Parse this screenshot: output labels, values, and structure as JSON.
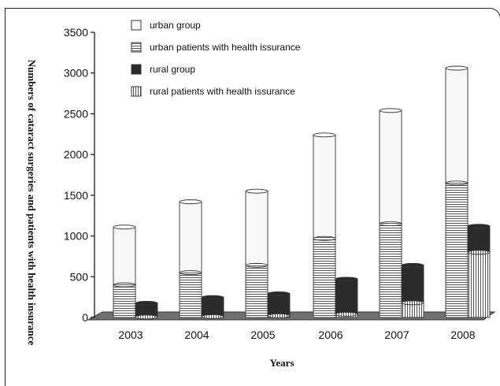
{
  "chart_data": {
    "type": "bar",
    "title": "",
    "xlabel": "Years",
    "ylabel": "Numbers of cataract surgeries and patients with health insurance",
    "categories": [
      "2003",
      "2004",
      "2005",
      "2006",
      "2007",
      "2008"
    ],
    "yticks": [
      "0",
      "500",
      "1000",
      "1500",
      "2000",
      "2500",
      "3000",
      "3500"
    ],
    "ylim": [
      0,
      3500
    ],
    "grid": false,
    "legend_position": "top",
    "stacks": [
      {
        "stack": "urban",
        "series": [
          {
            "name": "urban patients with health issurance",
            "pattern": "horizontal-lines",
            "values": [
              400,
              550,
              640,
              970,
              1150,
              1650
            ]
          },
          {
            "name": "urban group",
            "pattern": "white",
            "values": [
              1110,
              1420,
              1550,
              2240,
              2540,
              3060
            ]
          }
        ]
      },
      {
        "stack": "rural",
        "series": [
          {
            "name": "rural patients with health issurance",
            "pattern": "vertical-lines",
            "values": [
              5,
              10,
              20,
              40,
              180,
              800
            ]
          },
          {
            "name": "rural group",
            "pattern": "dark",
            "values": [
              175,
              245,
              290,
              470,
              640,
              1120
            ]
          }
        ]
      }
    ],
    "legend": [
      {
        "label": "urban group",
        "pattern": "white"
      },
      {
        "label": "urban patients with health issurance",
        "pattern": "horizontal-lines"
      },
      {
        "label": "rural group",
        "pattern": "dark"
      },
      {
        "label": "rural patients with health issurance",
        "pattern": "vertical-lines"
      }
    ],
    "colors": {
      "white": "#f8f8f8",
      "dark": "#2b2b2b",
      "lines": "#555555",
      "floor": "#707070"
    }
  }
}
